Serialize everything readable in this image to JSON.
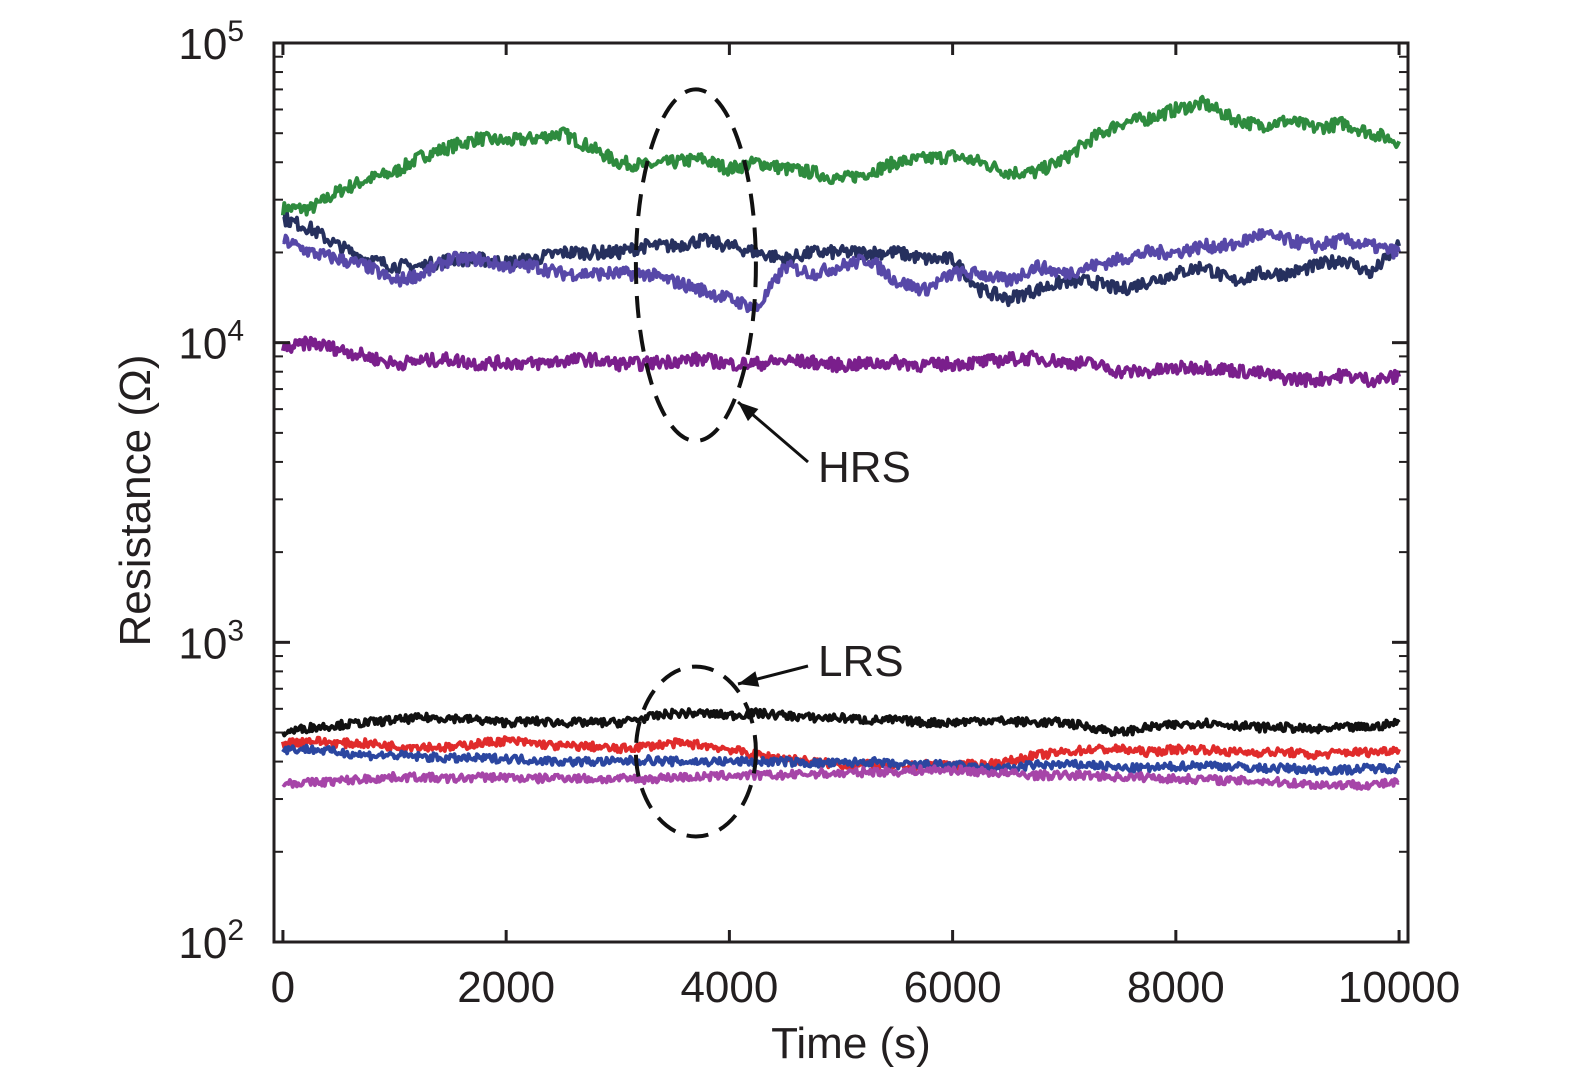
{
  "chart_data": {
    "type": "line",
    "title": "",
    "xlabel": "Time (s)",
    "ylabel": "Resistance (Ω)",
    "xlim": [
      -80,
      10080
    ],
    "ylim": [
      100,
      100000
    ],
    "yscale": "log",
    "grid": false,
    "x_ticks": [
      0,
      2000,
      4000,
      6000,
      8000,
      10000
    ],
    "x_tick_labels": [
      "0",
      "2000",
      "4000",
      "6000",
      "8000",
      "10000"
    ],
    "y_ticks": [
      100,
      1000,
      10000,
      100000
    ],
    "y_tick_labels": [
      {
        "base": "10",
        "exp": "2"
      },
      {
        "base": "10",
        "exp": "3"
      },
      {
        "base": "10",
        "exp": "4"
      },
      {
        "base": "10",
        "exp": "5"
      }
    ],
    "x": [
      0,
      250,
      500,
      750,
      1000,
      1250,
      1500,
      1750,
      2000,
      2250,
      2500,
      2750,
      3000,
      3250,
      3500,
      3750,
      4000,
      4250,
      4500,
      4750,
      5000,
      5250,
      5500,
      5750,
      6000,
      6250,
      6500,
      6750,
      7000,
      7250,
      7500,
      7750,
      8000,
      8250,
      8500,
      8750,
      9000,
      9250,
      9500,
      9750,
      10000
    ],
    "series": [
      {
        "color": "#2e8b3e",
        "state": "HRS",
        "values": [
          28000,
          28000,
          32000,
          35000,
          37000,
          42000,
          45000,
          48000,
          47000,
          48000,
          50000,
          45000,
          40000,
          39000,
          40000,
          41000,
          38000,
          40000,
          38000,
          37000,
          35000,
          37000,
          40000,
          41000,
          42000,
          40000,
          37000,
          37000,
          41000,
          48000,
          54000,
          56000,
          60000,
          63000,
          56000,
          53000,
          55000,
          52000,
          54000,
          50000,
          47000
        ]
      },
      {
        "color": "#26305e",
        "state": "HRS",
        "values": [
          26000,
          24000,
          21000,
          19000,
          18000,
          18000,
          19000,
          19000,
          18500,
          19000,
          20000,
          20000,
          20000,
          21000,
          21000,
          22000,
          21000,
          20000,
          19000,
          20000,
          20000,
          20000,
          20000,
          19000,
          19000,
          15000,
          14000,
          15000,
          16000,
          16000,
          15000,
          16000,
          17000,
          18000,
          16000,
          17000,
          17000,
          18000,
          19000,
          17000,
          21000
        ]
      },
      {
        "color": "#5748a8",
        "state": "HRS",
        "values": [
          22000,
          20000,
          19000,
          18000,
          16000,
          17000,
          19000,
          19000,
          18000,
          18000,
          17000,
          17000,
          17000,
          17000,
          16000,
          15000,
          14000,
          13000,
          18000,
          17000,
          18000,
          19000,
          16000,
          15000,
          17000,
          17000,
          16000,
          18000,
          17000,
          18000,
          19000,
          20000,
          20000,
          21000,
          21000,
          23000,
          22000,
          21000,
          22000,
          21000,
          20000
        ]
      },
      {
        "color": "#7a1f8c",
        "state": "HRS",
        "values": [
          9500,
          10000,
          9500,
          9000,
          8500,
          8700,
          8800,
          8500,
          8600,
          8500,
          8700,
          8800,
          8500,
          8500,
          8700,
          8800,
          8500,
          8500,
          8700,
          8600,
          8400,
          8500,
          8600,
          8400,
          8500,
          8600,
          8800,
          8900,
          8600,
          8500,
          8000,
          8000,
          8200,
          8300,
          8100,
          7900,
          7600,
          7500,
          7800,
          7500,
          7700
        ]
      },
      {
        "color": "#111111",
        "state": "LRS",
        "values": [
          500,
          520,
          530,
          540,
          550,
          560,
          560,
          550,
          540,
          545,
          540,
          540,
          540,
          560,
          580,
          580,
          570,
          580,
          570,
          560,
          560,
          550,
          550,
          540,
          540,
          550,
          545,
          540,
          540,
          520,
          500,
          520,
          530,
          540,
          530,
          520,
          520,
          510,
          520,
          520,
          540
        ]
      },
      {
        "color": "#e02b2b",
        "state": "LRS",
        "values": [
          460,
          470,
          460,
          460,
          450,
          450,
          445,
          460,
          470,
          460,
          450,
          450,
          440,
          450,
          460,
          455,
          440,
          420,
          410,
          400,
          390,
          390,
          380,
          390,
          390,
          390,
          400,
          420,
          430,
          440,
          440,
          430,
          440,
          440,
          430,
          430,
          430,
          420,
          430,
          430,
          440
        ]
      },
      {
        "color": "#2b46a0",
        "state": "LRS",
        "values": [
          440,
          440,
          430,
          420,
          420,
          415,
          410,
          410,
          410,
          405,
          400,
          400,
          400,
          405,
          400,
          400,
          400,
          400,
          400,
          395,
          395,
          400,
          390,
          390,
          390,
          380,
          380,
          390,
          390,
          390,
          380,
          380,
          385,
          390,
          385,
          380,
          380,
          375,
          375,
          380,
          380
        ]
      },
      {
        "color": "#a645a8",
        "state": "LRS",
        "values": [
          340,
          340,
          345,
          350,
          355,
          355,
          350,
          355,
          355,
          350,
          355,
          350,
          350,
          350,
          355,
          355,
          360,
          360,
          360,
          365,
          365,
          370,
          370,
          375,
          375,
          370,
          365,
          360,
          360,
          360,
          355,
          355,
          350,
          350,
          345,
          345,
          340,
          335,
          335,
          335,
          340
        ]
      }
    ],
    "annotations": [
      {
        "text": "HRS",
        "ellipse_center": [
          3700,
          9000
        ],
        "ellipse_y_range": [
          4700,
          70000
        ]
      },
      {
        "text": "LRS",
        "ellipse_center": [
          3700,
          420
        ],
        "ellipse_y_range": [
          225,
          830
        ]
      }
    ]
  }
}
